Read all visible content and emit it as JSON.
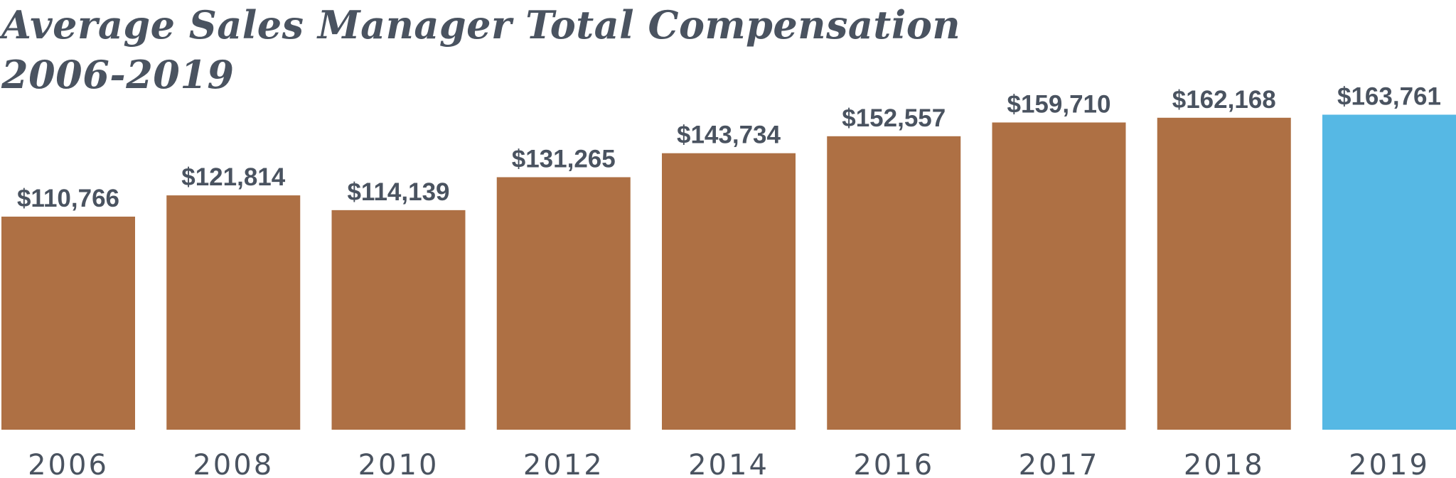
{
  "title_lines": [
    "Average Sales Manager Total Compensation",
    "2006-2019"
  ],
  "colors": {
    "default_bar": "#ae7044",
    "highlight_bar": "#56b8e4",
    "text": "#4a5360"
  },
  "chart_data": {
    "type": "bar",
    "title": "Average Sales Manager Total Compensation 2006-2019",
    "categories": [
      "2006",
      "2008",
      "2010",
      "2012",
      "2014",
      "2016",
      "2017",
      "2018",
      "2019"
    ],
    "values": [
      110766,
      121814,
      114139,
      131265,
      143734,
      152557,
      159710,
      162168,
      163761
    ],
    "value_labels": [
      "$110,766",
      "$121,814",
      "$114,139",
      "$131,265",
      "$143,734",
      "$152,557",
      "$159,710",
      "$162,168",
      "$163,761"
    ],
    "highlight_category": "2019",
    "xlabel": "",
    "ylabel": "",
    "grid": false,
    "legend": "none"
  }
}
